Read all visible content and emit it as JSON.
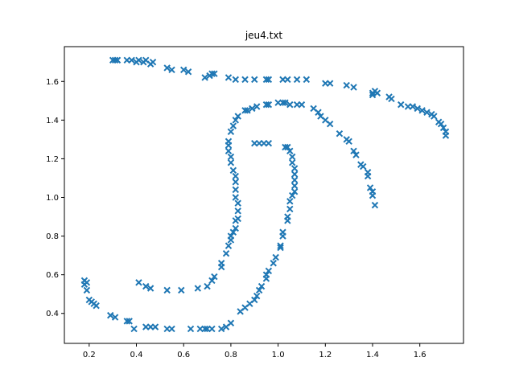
{
  "chart_data": {
    "type": "scatter",
    "title": "jeu4.txt",
    "xlabel": "",
    "ylabel": "",
    "xlim": [
      0.095,
      1.785
    ],
    "ylim": [
      0.245,
      1.78
    ],
    "xticks": [
      0.2,
      0.4,
      0.6,
      0.8,
      1.0,
      1.2,
      1.4,
      1.6
    ],
    "xtick_labels": [
      "0.2",
      "0.4",
      "0.6",
      "0.8",
      "1.0",
      "1.2",
      "1.4",
      "1.6"
    ],
    "yticks": [
      0.4,
      0.6,
      0.8,
      1.0,
      1.2,
      1.4,
      1.6
    ],
    "ytick_labels": [
      "0.4",
      "0.6",
      "0.8",
      "1.0",
      "1.2",
      "1.4",
      "1.6"
    ],
    "marker": "x",
    "color": "#1f77b4",
    "grid": false,
    "legend": false,
    "series": [
      {
        "points": [
          [
            0.3,
            1.71
          ],
          [
            0.31,
            1.71
          ],
          [
            0.32,
            1.71
          ],
          [
            0.36,
            1.71
          ],
          [
            0.38,
            1.71
          ],
          [
            0.4,
            1.7
          ],
          [
            0.41,
            1.71
          ],
          [
            0.43,
            1.7
          ],
          [
            0.44,
            1.71
          ],
          [
            0.46,
            1.69
          ],
          [
            0.47,
            1.7
          ],
          [
            0.53,
            1.67
          ],
          [
            0.55,
            1.66
          ],
          [
            0.6,
            1.66
          ],
          [
            0.62,
            1.65
          ],
          [
            0.69,
            1.62
          ],
          [
            0.71,
            1.63
          ],
          [
            0.72,
            1.64
          ],
          [
            0.73,
            1.64
          ],
          [
            0.79,
            1.62
          ],
          [
            0.82,
            1.61
          ],
          [
            0.86,
            1.61
          ],
          [
            0.9,
            1.61
          ],
          [
            0.95,
            1.61
          ],
          [
            0.96,
            1.61
          ],
          [
            1.02,
            1.61
          ],
          [
            1.04,
            1.61
          ],
          [
            1.08,
            1.61
          ],
          [
            1.12,
            1.61
          ],
          [
            1.2,
            1.59
          ],
          [
            1.22,
            1.59
          ],
          [
            1.29,
            1.58
          ],
          [
            1.32,
            1.57
          ],
          [
            1.4,
            1.54
          ],
          [
            1.41,
            1.55
          ],
          [
            1.4,
            1.53
          ],
          [
            1.42,
            1.54
          ],
          [
            1.47,
            1.52
          ],
          [
            1.48,
            1.51
          ],
          [
            1.52,
            1.48
          ],
          [
            1.55,
            1.47
          ],
          [
            1.57,
            1.47
          ],
          [
            1.59,
            1.46
          ],
          [
            1.61,
            1.45
          ],
          [
            1.63,
            1.44
          ],
          [
            1.65,
            1.43
          ],
          [
            1.66,
            1.42
          ],
          [
            1.68,
            1.39
          ],
          [
            1.69,
            1.38
          ],
          [
            1.7,
            1.36
          ],
          [
            1.71,
            1.34
          ],
          [
            1.71,
            1.32
          ]
        ]
      },
      {
        "points": [
          [
            0.18,
            0.57
          ],
          [
            0.19,
            0.56
          ],
          [
            0.18,
            0.55
          ],
          [
            0.19,
            0.52
          ],
          [
            0.2,
            0.47
          ],
          [
            0.21,
            0.46
          ],
          [
            0.22,
            0.45
          ],
          [
            0.23,
            0.44
          ],
          [
            0.29,
            0.39
          ],
          [
            0.31,
            0.38
          ],
          [
            0.36,
            0.36
          ],
          [
            0.37,
            0.36
          ],
          [
            0.39,
            0.32
          ],
          [
            0.44,
            0.33
          ],
          [
            0.46,
            0.33
          ],
          [
            0.48,
            0.33
          ],
          [
            0.53,
            0.32
          ],
          [
            0.55,
            0.32
          ],
          [
            0.63,
            0.32
          ],
          [
            0.67,
            0.32
          ],
          [
            0.69,
            0.32
          ],
          [
            0.7,
            0.32
          ],
          [
            0.72,
            0.32
          ],
          [
            0.76,
            0.32
          ],
          [
            0.78,
            0.33
          ],
          [
            0.8,
            0.35
          ],
          [
            0.84,
            0.41
          ],
          [
            0.86,
            0.43
          ],
          [
            0.88,
            0.45
          ],
          [
            0.9,
            0.47
          ],
          [
            0.91,
            0.49
          ],
          [
            0.92,
            0.52
          ],
          [
            0.93,
            0.54
          ],
          [
            0.95,
            0.58
          ],
          [
            0.95,
            0.6
          ],
          [
            0.96,
            0.62
          ],
          [
            0.98,
            0.66
          ],
          [
            0.99,
            0.69
          ],
          [
            1.01,
            0.74
          ],
          [
            1.01,
            0.75
          ],
          [
            1.02,
            0.8
          ],
          [
            1.02,
            0.82
          ],
          [
            1.04,
            0.88
          ],
          [
            1.04,
            0.9
          ],
          [
            1.05,
            0.94
          ],
          [
            1.05,
            0.98
          ],
          [
            1.06,
            1.01
          ],
          [
            1.07,
            1.03
          ],
          [
            1.07,
            1.06
          ],
          [
            1.07,
            1.09
          ],
          [
            1.07,
            1.12
          ],
          [
            1.07,
            1.15
          ],
          [
            1.06,
            1.18
          ],
          [
            1.06,
            1.21
          ],
          [
            1.05,
            1.24
          ],
          [
            1.04,
            1.26
          ],
          [
            1.03,
            1.26
          ],
          [
            0.94,
            1.28
          ],
          [
            0.92,
            1.28
          ],
          [
            0.9,
            1.28
          ],
          [
            0.96,
            1.28
          ]
        ]
      },
      {
        "points": [
          [
            0.41,
            0.56
          ],
          [
            0.44,
            0.54
          ],
          [
            0.46,
            0.53
          ],
          [
            0.53,
            0.52
          ],
          [
            0.59,
            0.52
          ],
          [
            0.66,
            0.53
          ],
          [
            0.7,
            0.54
          ],
          [
            0.72,
            0.57
          ],
          [
            0.73,
            0.59
          ],
          [
            0.76,
            0.64
          ],
          [
            0.76,
            0.66
          ],
          [
            0.78,
            0.71
          ],
          [
            0.79,
            0.75
          ],
          [
            0.8,
            0.78
          ],
          [
            0.8,
            0.8
          ],
          [
            0.81,
            0.82
          ],
          [
            0.82,
            0.84
          ],
          [
            0.82,
            0.88
          ],
          [
            0.83,
            0.89
          ],
          [
            0.83,
            0.93
          ],
          [
            0.83,
            0.97
          ],
          [
            0.82,
            1.0
          ],
          [
            0.82,
            1.04
          ],
          [
            0.82,
            1.08
          ],
          [
            0.82,
            1.11
          ],
          [
            0.81,
            1.14
          ],
          [
            0.8,
            1.18
          ],
          [
            0.8,
            1.21
          ],
          [
            0.79,
            1.24
          ],
          [
            0.79,
            1.27
          ],
          [
            0.79,
            1.29
          ],
          [
            0.8,
            1.34
          ],
          [
            0.81,
            1.37
          ],
          [
            0.82,
            1.4
          ],
          [
            0.83,
            1.42
          ],
          [
            0.86,
            1.45
          ],
          [
            0.87,
            1.45
          ],
          [
            0.89,
            1.46
          ],
          [
            0.91,
            1.47
          ],
          [
            0.95,
            1.48
          ],
          [
            0.96,
            1.48
          ],
          [
            1.0,
            1.49
          ],
          [
            1.02,
            1.49
          ],
          [
            1.03,
            1.49
          ],
          [
            1.05,
            1.48
          ],
          [
            1.08,
            1.48
          ],
          [
            1.1,
            1.48
          ],
          [
            1.15,
            1.46
          ],
          [
            1.17,
            1.44
          ],
          [
            1.18,
            1.42
          ],
          [
            1.2,
            1.4
          ],
          [
            1.22,
            1.38
          ],
          [
            1.26,
            1.33
          ],
          [
            1.29,
            1.3
          ],
          [
            1.3,
            1.29
          ],
          [
            1.32,
            1.24
          ],
          [
            1.33,
            1.22
          ],
          [
            1.35,
            1.17
          ],
          [
            1.36,
            1.16
          ],
          [
            1.38,
            1.13
          ],
          [
            1.38,
            1.11
          ],
          [
            1.39,
            1.05
          ],
          [
            1.4,
            1.03
          ],
          [
            1.4,
            1.01
          ],
          [
            1.41,
            0.96
          ]
        ]
      }
    ]
  }
}
